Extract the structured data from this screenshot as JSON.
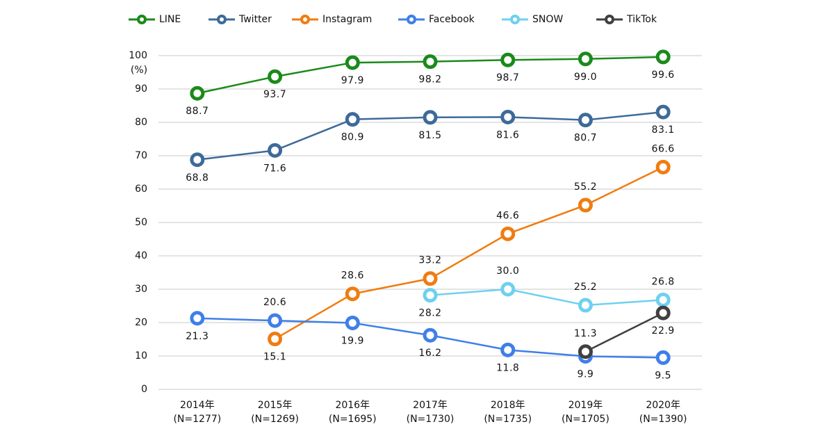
{
  "chart_data": {
    "type": "line",
    "y_label": "(%)",
    "categories": [
      "2014年\n(N=1277)",
      "2015年\n(N=1269)",
      "2016年\n(N=1695)",
      "2017年\n(N=1730)",
      "2018年\n(N=1735)",
      "2019年\n(N=1705)",
      "2020年\n(N=1390)"
    ],
    "ylim": [
      0,
      100
    ],
    "yticks": [
      0,
      10,
      20,
      30,
      40,
      50,
      60,
      70,
      80,
      90,
      100
    ],
    "grid": true,
    "legend": "top",
    "series": [
      {
        "name": "LINE",
        "color": "#1a8a1a",
        "values": [
          88.7,
          93.7,
          97.9,
          98.2,
          98.7,
          99.0,
          99.6
        ],
        "value_labels": [
          "88.7",
          "93.7",
          "97.9",
          "98.2",
          "98.7",
          "99.0",
          "99.6"
        ]
      },
      {
        "name": "Twitter",
        "color": "#3d6a99",
        "values": [
          68.8,
          71.6,
          80.9,
          81.5,
          81.6,
          80.7,
          83.1
        ],
        "value_labels": [
          "68.8",
          "71.6",
          "80.9",
          "81.5",
          "81.6",
          "80.7",
          "83.1"
        ]
      },
      {
        "name": "Instagram",
        "color": "#f07c10",
        "values": [
          null,
          15.1,
          28.6,
          33.2,
          46.6,
          55.2,
          66.6
        ],
        "value_labels": [
          null,
          "15.1",
          "28.6",
          "33.2",
          "46.6",
          "55.2",
          "66.6"
        ]
      },
      {
        "name": "Facebook",
        "color": "#3f7fe8",
        "values": [
          21.3,
          20.6,
          19.9,
          16.2,
          11.8,
          9.9,
          9.5
        ],
        "value_labels": [
          "21.3",
          "20.6",
          "19.9",
          "16.2",
          "11.8",
          "9.9",
          "9.5"
        ]
      },
      {
        "name": "SNOW",
        "color": "#6fd0f0",
        "values": [
          null,
          null,
          null,
          28.2,
          30.0,
          25.2,
          26.8
        ],
        "value_labels": [
          null,
          null,
          null,
          "28.2",
          "30.0",
          "25.2",
          "26.8"
        ]
      },
      {
        "name": "TikTok",
        "color": "#404040",
        "values": [
          null,
          null,
          null,
          null,
          null,
          11.3,
          22.9
        ],
        "value_labels": [
          null,
          null,
          null,
          null,
          null,
          "11.3",
          "22.9"
        ]
      }
    ]
  }
}
